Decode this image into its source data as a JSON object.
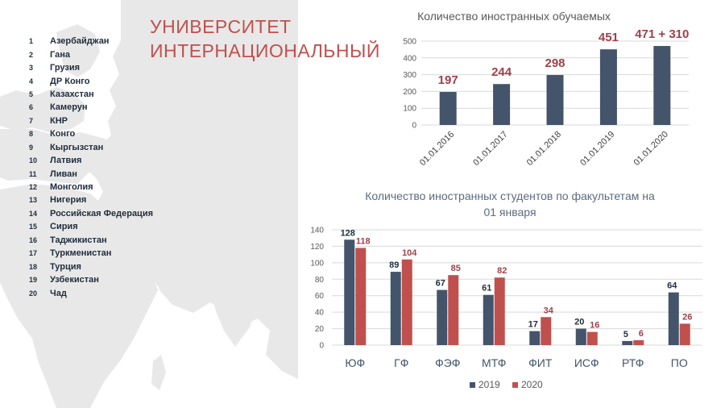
{
  "title": {
    "line1": "УНИВЕРСИТЕТ",
    "line2": "ИНТЕРНАЦИОНАЛЬНЫЙ"
  },
  "countries": [
    {
      "num": "1",
      "name": "Азербайджан"
    },
    {
      "num": "2",
      "name": "Гана"
    },
    {
      "num": "3",
      "name": "Грузия"
    },
    {
      "num": "4",
      "name": "ДР Конго"
    },
    {
      "num": "5",
      "name": "Казахстан"
    },
    {
      "num": "6",
      "name": "Камерун"
    },
    {
      "num": "7",
      "name": "КНР"
    },
    {
      "num": "8",
      "name": "Конго"
    },
    {
      "num": "9",
      "name": "Кыргызстан"
    },
    {
      "num": "10",
      "name": "Латвия"
    },
    {
      "num": "11",
      "name": "Ливан"
    },
    {
      "num": "12",
      "name": "Монголия"
    },
    {
      "num": "13",
      "name": "Нигерия"
    },
    {
      "num": "14",
      "name": "Российская Федерация"
    },
    {
      "num": "15",
      "name": "Сирия"
    },
    {
      "num": "16",
      "name": "Таджикистан"
    },
    {
      "num": "17",
      "name": "Туркменистан"
    },
    {
      "num": "18",
      "name": "Турция"
    },
    {
      "num": "19",
      "name": "Узбекистан"
    },
    {
      "num": "20",
      "name": "Чад"
    }
  ],
  "colors": {
    "navy": "#44546a",
    "red": "#c0504d",
    "map": "#e8e8e8"
  },
  "chart_data": [
    {
      "type": "bar",
      "title": "Количество иностранных обучаемых",
      "categories": [
        "01.01.2016",
        "01.01.2017",
        "01.01.2018",
        "01.01.2019",
        "01.01.2020"
      ],
      "values": [
        197,
        244,
        298,
        451,
        471
      ],
      "data_labels": [
        "197",
        "244",
        "298",
        "451",
        "471 + 310"
      ],
      "ylim": [
        0,
        500
      ],
      "yticks": [
        0,
        100,
        200,
        300,
        400,
        500
      ],
      "grid": true,
      "bar_color": "#44546a",
      "label_color": "#a0404a"
    },
    {
      "type": "bar",
      "title": "Количество иностранных студентов по факультетам на 01 января",
      "categories": [
        "ЮФ",
        "ГФ",
        "ФЭФ",
        "МТФ",
        "ФИТ",
        "ИСФ",
        "РТФ",
        "ПО"
      ],
      "series": [
        {
          "name": "2019",
          "values": [
            128,
            89,
            67,
            61,
            17,
            20,
            5,
            64
          ],
          "color": "#44546a"
        },
        {
          "name": "2020",
          "values": [
            118,
            104,
            85,
            82,
            34,
            16,
            6,
            26
          ],
          "color": "#c0504d"
        }
      ],
      "ylim": [
        0,
        140
      ],
      "yticks": [
        0,
        20,
        40,
        60,
        80,
        100,
        120,
        140
      ],
      "grid": true,
      "legend": "bottom"
    }
  ]
}
